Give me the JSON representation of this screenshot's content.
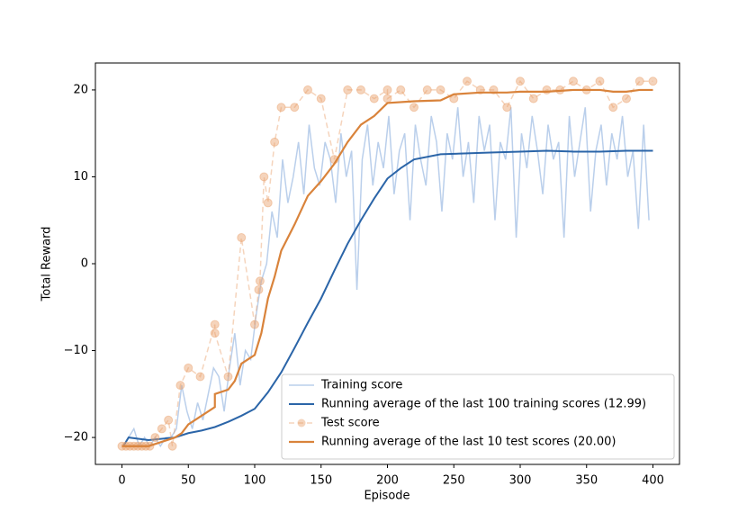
{
  "chart_data": {
    "type": "line",
    "xlabel": "Episode",
    "ylabel": "Total Reward",
    "xlim": [
      -20,
      420
    ],
    "ylim": [
      -23.1,
      23.1
    ],
    "xticks": [
      0,
      50,
      100,
      150,
      200,
      250,
      300,
      350,
      400
    ],
    "yticks": [
      {
        "value": -20,
        "label": "−20"
      },
      {
        "value": -10,
        "label": "−10"
      },
      0,
      10,
      20
    ],
    "legend": "lower right",
    "series": [
      {
        "name": "Training score",
        "color": "#aec7e8",
        "opacity": 0.85,
        "width": 1.5,
        "linestyle": "solid",
        "markers": false,
        "x": [
          1,
          5,
          9,
          13,
          17,
          21,
          25,
          29,
          33,
          37,
          41,
          45,
          49,
          53,
          57,
          61,
          65,
          69,
          73,
          77,
          81,
          85,
          89,
          93,
          97,
          101,
          105,
          109,
          113,
          117,
          121,
          125,
          129,
          133,
          137,
          141,
          145,
          149,
          153,
          157,
          161,
          165,
          169,
          173,
          177,
          181,
          185,
          189,
          193,
          197,
          201,
          205,
          209,
          213,
          217,
          221,
          225,
          229,
          233,
          237,
          241,
          245,
          249,
          253,
          257,
          261,
          265,
          269,
          273,
          277,
          281,
          285,
          289,
          293,
          297,
          301,
          305,
          309,
          313,
          317,
          321,
          325,
          329,
          333,
          337,
          341,
          345,
          349,
          353,
          357,
          361,
          365,
          369,
          373,
          377,
          381,
          385,
          389,
          393,
          397
        ],
        "values": [
          -21,
          -20,
          -19,
          -21,
          -20,
          -21,
          -20,
          -21,
          -20,
          -20,
          -19,
          -14,
          -17,
          -19,
          -16,
          -18,
          -15,
          -12,
          -13,
          -17,
          -12,
          -8,
          -14,
          -10,
          -11,
          -6,
          -2,
          0,
          6,
          3,
          12,
          7,
          10,
          14,
          8,
          16,
          11,
          9,
          14,
          12,
          7,
          15,
          10,
          13,
          -3,
          12,
          16,
          9,
          14,
          11,
          17,
          8,
          13,
          15,
          5,
          16,
          12,
          9,
          17,
          14,
          6,
          15,
          12,
          18,
          10,
          14,
          7,
          17,
          13,
          16,
          5,
          14,
          12,
          18,
          3,
          15,
          11,
          17,
          13,
          8,
          16,
          12,
          14,
          3,
          17,
          10,
          14,
          18,
          6,
          13,
          16,
          9,
          15,
          12,
          17,
          10,
          13,
          4,
          16,
          5
        ]
      },
      {
        "name": "Running average of the last 100 training scores (12.99)",
        "color": "#2b65a8",
        "opacity": 1,
        "width": 2,
        "linestyle": "solid",
        "markers": false,
        "x": [
          1,
          5,
          20,
          40,
          50,
          60,
          70,
          80,
          90,
          100,
          110,
          120,
          130,
          140,
          150,
          160,
          170,
          180,
          190,
          200,
          210,
          220,
          240,
          260,
          280,
          300,
          320,
          340,
          360,
          380,
          400
        ],
        "values": [
          -21,
          -20,
          -20.3,
          -20,
          -19.5,
          -19.2,
          -18.8,
          -18.2,
          -17.5,
          -16.7,
          -14.8,
          -12.5,
          -9.7,
          -6.8,
          -4,
          -0.8,
          2.3,
          5,
          7.5,
          9.8,
          11,
          12,
          12.6,
          12.7,
          12.8,
          12.9,
          13,
          12.9,
          12.9,
          13,
          13
        ]
      },
      {
        "name": "Test score",
        "color": "#e8a06a",
        "opacity": 0.45,
        "width": 1.5,
        "linestyle": "dashed",
        "markers": true,
        "x": [
          0,
          3,
          6,
          9,
          12,
          15,
          18,
          21,
          25,
          30,
          35,
          38,
          44,
          50,
          59,
          70,
          70,
          80,
          90,
          100,
          103,
          104,
          107,
          110,
          115,
          120,
          130,
          140,
          150,
          160,
          170,
          180,
          190,
          200,
          200,
          210,
          220,
          230,
          240,
          250,
          260,
          270,
          280,
          290,
          300,
          310,
          320,
          330,
          340,
          350,
          360,
          370,
          380,
          390,
          400
        ],
        "values": [
          -21,
          -21,
          -21,
          -21,
          -21,
          -21,
          -21,
          -21,
          -20,
          -19,
          -18,
          -21,
          -14,
          -12,
          -13,
          -7,
          -8,
          -13,
          3,
          -7,
          -3,
          -2,
          10,
          7,
          14,
          18,
          18,
          20,
          19,
          12,
          20,
          20,
          19,
          20,
          19,
          20,
          18,
          20,
          20,
          19,
          21,
          20,
          20,
          18,
          21,
          19,
          20,
          20,
          21,
          20,
          21,
          18,
          19,
          21,
          21
        ]
      },
      {
        "name": "Running average of the last 10 test scores (20.00)",
        "color": "#d9833b",
        "opacity": 1,
        "width": 2.2,
        "linestyle": "solid",
        "markers": false,
        "x": [
          0,
          20,
          30,
          40,
          45,
          50,
          60,
          70,
          70,
          80,
          85,
          90,
          100,
          105,
          110,
          115,
          120,
          130,
          140,
          150,
          160,
          170,
          180,
          190,
          200,
          220,
          240,
          250,
          270,
          290,
          300,
          320,
          340,
          360,
          370,
          380,
          390,
          400
        ],
        "values": [
          -21,
          -21,
          -20.5,
          -20,
          -19.5,
          -18.5,
          -17.5,
          -16.5,
          -15,
          -14.5,
          -13.5,
          -11.5,
          -10.5,
          -8,
          -4,
          -1.5,
          1.5,
          4.5,
          7.8,
          9.5,
          11.5,
          14,
          16,
          17,
          18.5,
          18.7,
          18.8,
          19.5,
          19.7,
          19.7,
          19.8,
          19.8,
          20,
          20,
          19.8,
          19.8,
          20,
          20
        ]
      }
    ]
  }
}
